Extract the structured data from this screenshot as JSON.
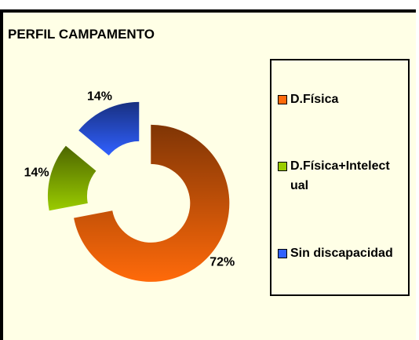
{
  "chart_data": {
    "type": "doughnut",
    "title": "PERFIL CAMPAMENTO",
    "categories": [
      "D.Física",
      "D.Física+Intelectual",
      "Sin discapacidad"
    ],
    "values": [
      72,
      14,
      14
    ],
    "value_labels": [
      "72%",
      "14%",
      "14%"
    ],
    "colors": [
      "#ff6a0a",
      "#9acc00",
      "#3060ff"
    ],
    "legend": "right"
  }
}
